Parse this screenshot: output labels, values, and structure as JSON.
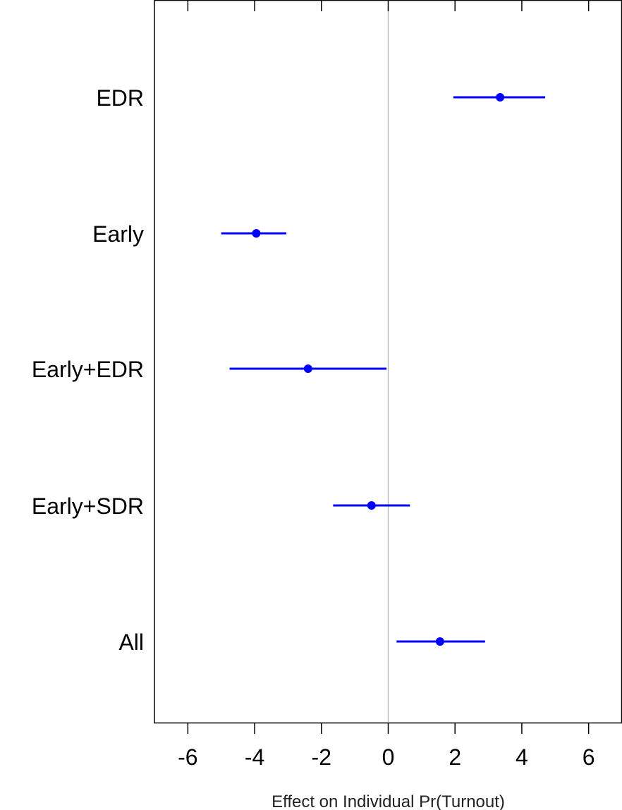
{
  "chart_data": {
    "type": "scatter",
    "subtype": "coefficient-plot",
    "title": "",
    "xlabel": "Effect on Individual Pr(Turnout)",
    "ylabel": "",
    "xlim": [
      -7,
      7
    ],
    "xticks": [
      -6,
      -4,
      -2,
      0,
      2,
      4,
      6
    ],
    "xtick_labels": [
      "-6",
      "-4",
      "-2",
      "0",
      "2",
      "4",
      "6"
    ],
    "reference_line": 0,
    "grid": false,
    "color": "#0000ff",
    "reference_color": "#bbbbbb",
    "points": [
      {
        "label": "EDR",
        "estimate": 3.35,
        "lower": 1.95,
        "upper": 4.7
      },
      {
        "label": "Early",
        "estimate": -3.95,
        "lower": -5.0,
        "upper": -3.05
      },
      {
        "label": "Early+EDR",
        "estimate": -2.4,
        "lower": -4.75,
        "upper": -0.05
      },
      {
        "label": "Early+SDR",
        "estimate": -0.5,
        "lower": -1.65,
        "upper": 0.65
      },
      {
        "label": "All",
        "estimate": 1.55,
        "lower": 0.25,
        "upper": 2.9
      }
    ]
  }
}
